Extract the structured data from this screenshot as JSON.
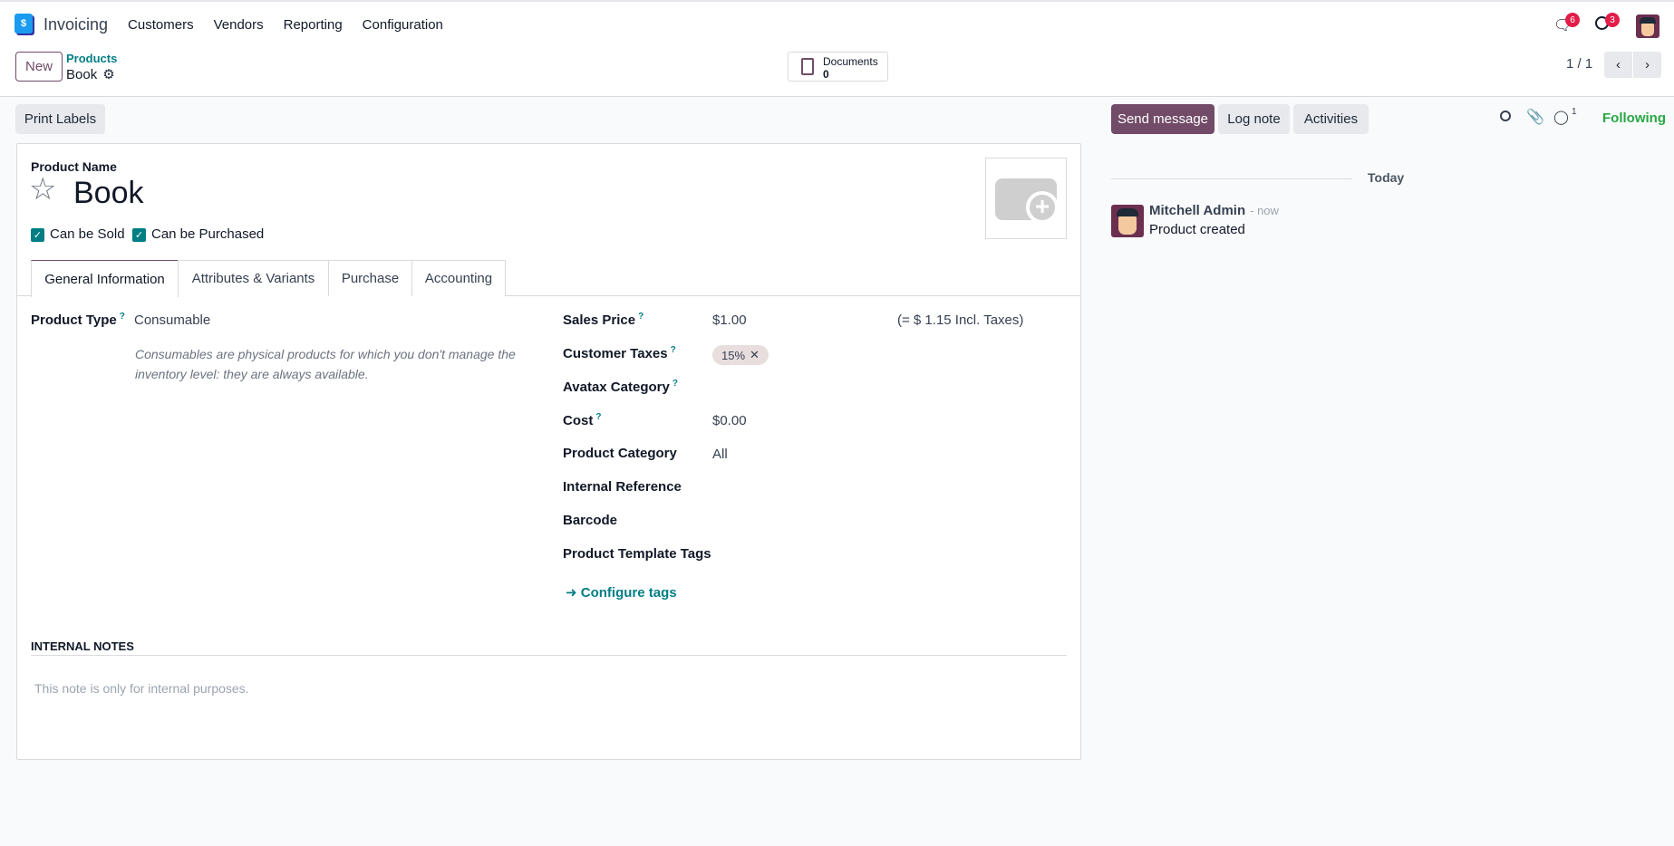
{
  "navbar": {
    "app_name": "Invoicing",
    "menu": [
      "Customers",
      "Vendors",
      "Reporting",
      "Configuration"
    ],
    "messages_count": "6",
    "activities_count": "3"
  },
  "control_panel": {
    "new_label": "New",
    "breadcrumb_parent": "Products",
    "breadcrumb_current": "Book",
    "documents_label": "Documents",
    "documents_count": "0",
    "pager": "1 / 1"
  },
  "toolbar": {
    "print_labels": "Print Labels"
  },
  "form": {
    "product_name_label": "Product Name",
    "product_name": "Book",
    "can_be_sold": "Can be Sold",
    "can_be_purchased": "Can be Purchased",
    "tabs": [
      "General Information",
      "Attributes & Variants",
      "Purchase",
      "Accounting"
    ],
    "product_type_label": "Product Type",
    "product_type": "Consumable",
    "product_type_help": "Consumables are physical products for which you don't manage the inventory level: they are always available.",
    "sales_price_label": "Sales Price",
    "sales_price": "$1.00",
    "incl_taxes": "(= $ 1.15 Incl. Taxes)",
    "customer_taxes_label": "Customer Taxes",
    "customer_tax_tag": "15%",
    "avatax_label": "Avatax Category",
    "cost_label": "Cost",
    "cost": "$0.00",
    "category_label": "Product Category",
    "category": "All",
    "internal_ref_label": "Internal Reference",
    "barcode_label": "Barcode",
    "tags_label": "Product Template Tags",
    "configure_tags": "Configure tags",
    "internal_notes_title": "INTERNAL NOTES",
    "internal_notes_placeholder": "This note is only for internal purposes."
  },
  "chatter": {
    "send_message": "Send message",
    "log_note": "Log note",
    "activities": "Activities",
    "followers_count": "1",
    "following": "Following",
    "date_separator": "Today",
    "messages": [
      {
        "author": "Mitchell Admin",
        "time": "- now",
        "body": "Product created"
      }
    ]
  },
  "colors": {
    "primary": "#714b67",
    "teal": "#017e84",
    "following": "#28a745",
    "badge": "#e11d48"
  }
}
